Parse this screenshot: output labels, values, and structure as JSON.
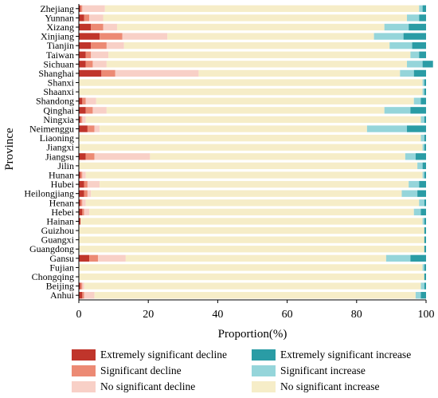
{
  "chart_data": {
    "type": "bar",
    "orientation": "horizontal",
    "stacked": true,
    "title": "",
    "xlabel": "Proportion(%)",
    "ylabel": "Province",
    "xlim": [
      0,
      100
    ],
    "xticks": [
      0,
      20,
      40,
      60,
      80,
      100
    ],
    "grid": false,
    "legend_position": "bottom",
    "categories": [
      "Zhejiang",
      "Yunnan",
      "Xizang",
      "Xinjiang",
      "Tianjin",
      "Taiwan",
      "Sichuan",
      "Shanghai",
      "Shanxi",
      "Shaanxi",
      "Shandong",
      "Qinghai",
      "Ningxia",
      "Neimenggu",
      "Liaoning",
      "Jiangxi",
      "Jiangsu",
      "Jilin",
      "Hunan",
      "Hubei",
      "Heilongjiang",
      "Henan",
      "Hebei",
      "Hainan",
      "Guizhou",
      "Guangxi",
      "Guangdong",
      "Gansu",
      "Fujian",
      "Chongqing",
      "Beijing",
      "Anhui"
    ],
    "series": [
      {
        "name": "Extremely significant decline",
        "color": "#c0352b",
        "values": [
          0.5,
          1.5,
          3.5,
          6.0,
          3.5,
          2.0,
          2.0,
          6.5,
          0.0,
          0.0,
          1.0,
          2.0,
          0.5,
          2.5,
          0.0,
          0.0,
          2.0,
          0.0,
          0.5,
          1.5,
          1.5,
          0.5,
          1.0,
          0.5,
          0.0,
          0.0,
          0.0,
          3.0,
          0.0,
          0.0,
          0.5,
          1.0
        ]
      },
      {
        "name": "Significant decline",
        "color": "#ec8a74",
        "values": [
          0.5,
          1.5,
          3.5,
          6.5,
          4.5,
          1.5,
          2.0,
          4.0,
          0.0,
          0.0,
          1.0,
          2.0,
          0.5,
          2.0,
          0.0,
          0.0,
          2.5,
          0.0,
          0.5,
          1.0,
          1.0,
          0.5,
          0.5,
          0.0,
          0.0,
          0.0,
          0.0,
          2.5,
          0.0,
          0.0,
          0.5,
          0.5
        ]
      },
      {
        "name": "No significant decline",
        "color": "#f8d0c7",
        "values": [
          6.5,
          4.0,
          4.0,
          13.0,
          5.0,
          5.0,
          4.0,
          24.0,
          0.0,
          0.0,
          3.0,
          4.0,
          1.0,
          1.5,
          0.0,
          0.0,
          16.0,
          0.0,
          1.0,
          3.5,
          1.0,
          1.0,
          1.5,
          0.0,
          0.0,
          0.0,
          0.0,
          8.0,
          0.0,
          0.0,
          0.5,
          3.0
        ]
      },
      {
        "name": "No significant increase",
        "color": "#f6edc8",
        "values": [
          90.5,
          87.5,
          77.0,
          59.5,
          76.5,
          87.0,
          86.5,
          58.0,
          99.0,
          99.0,
          91.5,
          80.0,
          96.5,
          77.0,
          98.5,
          99.0,
          73.5,
          97.5,
          97.0,
          89.0,
          89.5,
          96.0,
          93.5,
          98.5,
          99.5,
          99.5,
          99.5,
          75.0,
          99.0,
          99.5,
          97.0,
          92.5
        ]
      },
      {
        "name": "Significant increase",
        "color": "#95d5da",
        "values": [
          1.0,
          3.5,
          7.0,
          8.5,
          6.5,
          2.5,
          4.5,
          4.0,
          0.5,
          0.5,
          2.0,
          7.5,
          1.0,
          11.5,
          1.0,
          0.5,
          3.0,
          1.5,
          0.5,
          3.0,
          4.5,
          1.5,
          2.0,
          0.5,
          0.0,
          0.0,
          0.0,
          7.0,
          0.5,
          0.0,
          1.0,
          1.5
        ]
      },
      {
        "name": "Extremely significant increase",
        "color": "#2a9ca5",
        "values": [
          1.0,
          2.0,
          5.0,
          6.5,
          4.0,
          2.0,
          3.0,
          3.5,
          0.5,
          0.5,
          1.5,
          4.5,
          0.5,
          5.5,
          0.5,
          0.5,
          3.0,
          1.0,
          0.5,
          2.0,
          2.5,
          0.5,
          1.5,
          0.5,
          0.5,
          0.5,
          0.5,
          4.5,
          0.5,
          0.5,
          0.5,
          1.5
        ]
      }
    ]
  }
}
